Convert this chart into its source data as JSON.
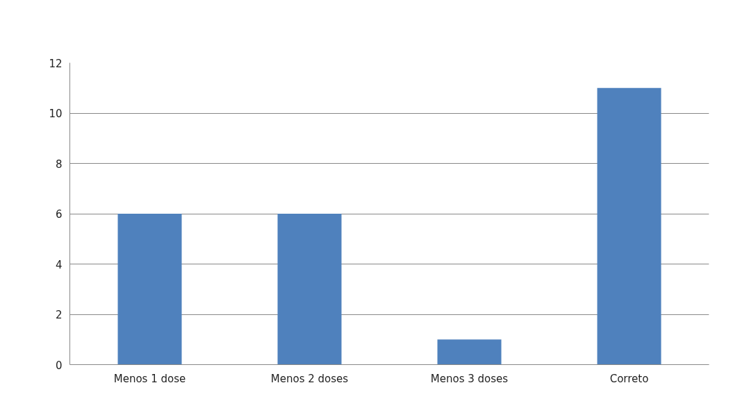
{
  "chart_data": {
    "type": "bar",
    "categories": [
      "Menos 1 dose",
      "Menos 2 doses",
      "Menos 3 doses",
      "Correto"
    ],
    "values": [
      6,
      6,
      1,
      11
    ],
    "color": "#4f81bd",
    "ylim": [
      0,
      12
    ],
    "yticks": [
      0,
      2,
      4,
      6,
      8,
      10,
      12
    ],
    "grid": "y"
  }
}
